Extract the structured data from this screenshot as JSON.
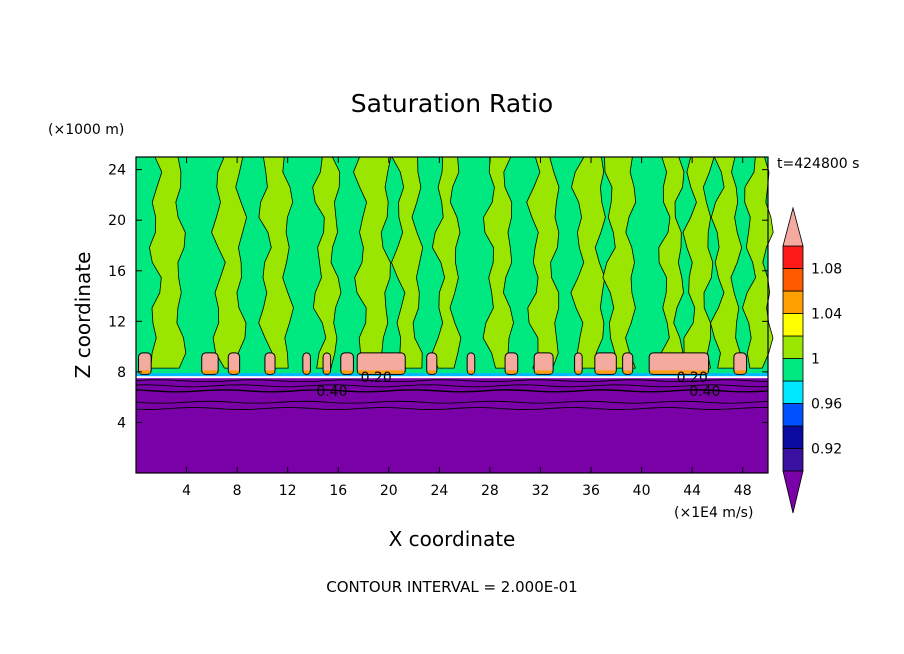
{
  "chart_data": {
    "type": "heatmap",
    "title": "Saturation Ratio",
    "xlabel": "X coordinate",
    "ylabel": "Z coordinate",
    "x_unit": "(×1E4 m/s)",
    "y_unit": "(×1000 m)",
    "time_label": "t=424800 s",
    "footer": "CONTOUR INTERVAL = 2.000E-01",
    "xlim": [
      0,
      50
    ],
    "ylim": [
      0,
      25
    ],
    "x_ticks": [
      "4",
      "8",
      "12",
      "16",
      "20",
      "24",
      "28",
      "32",
      "36",
      "40",
      "44",
      "48"
    ],
    "x_tick_values": [
      4,
      8,
      12,
      16,
      20,
      24,
      28,
      32,
      36,
      40,
      44,
      48
    ],
    "y_ticks": [
      "4",
      "8",
      "12",
      "16",
      "20",
      "24"
    ],
    "y_tick_values": [
      4,
      8,
      12,
      16,
      20,
      24
    ],
    "colorbar": {
      "labels": [
        "0.92",
        "0.96",
        "1",
        "1.04",
        "1.08"
      ],
      "label_values": [
        0.92,
        0.96,
        1.0,
        1.04,
        1.08
      ],
      "bins": [
        {
          "lo": 0.9,
          "hi": 0.92,
          "color": "#3a10a0"
        },
        {
          "lo": 0.92,
          "hi": 0.94,
          "color": "#0a0aa0"
        },
        {
          "lo": 0.94,
          "hi": 0.96,
          "color": "#0050ff"
        },
        {
          "lo": 0.96,
          "hi": 0.98,
          "color": "#00e8ff"
        },
        {
          "lo": 0.98,
          "hi": 1.0,
          "color": "#00e880"
        },
        {
          "lo": 1.0,
          "hi": 1.02,
          "color": "#9be600"
        },
        {
          "lo": 1.02,
          "hi": 1.04,
          "color": "#ffff00"
        },
        {
          "lo": 1.04,
          "hi": 1.06,
          "color": "#ffa000"
        },
        {
          "lo": 1.06,
          "hi": 1.08,
          "color": "#ff5a00"
        },
        {
          "lo": 1.08,
          "hi": 1.1,
          "color": "#ff1a1a"
        }
      ],
      "under_color": "#7a00a8",
      "over_color": "#f5aaa0"
    },
    "contour_labels": [
      {
        "text": "0.20",
        "x": 19,
        "z": 7.6
      },
      {
        "text": "0.40",
        "x": 15.5,
        "z": 6.5
      },
      {
        "text": "0.20",
        "x": 44,
        "z": 7.6
      },
      {
        "text": "0.40",
        "x": 45,
        "z": 6.5
      }
    ],
    "field": {
      "low_layer_top_z": 7.5,
      "low_layer_color": "#7a00a8",
      "cloud_layer_z": [
        7.8,
        9.5
      ],
      "cloud_color": "#f5aaa0",
      "upper_green_color": "#9be600",
      "upper_teal_color": "#00e880",
      "green_columns_x": [
        [
          1.5,
          3.5
        ],
        [
          6.5,
          8.3
        ],
        [
          10.2,
          12.0
        ],
        [
          14.5,
          15.8
        ],
        [
          17.8,
          19.8
        ],
        [
          20.8,
          22.3
        ],
        [
          24.0,
          25.3
        ],
        [
          28.0,
          29.5
        ],
        [
          31.5,
          33.2
        ],
        [
          35.0,
          36.8
        ],
        [
          37.5,
          39.2
        ],
        [
          41.8,
          43.0
        ],
        [
          43.8,
          45.3
        ],
        [
          46.0,
          47.5
        ],
        [
          48.5,
          50.0
        ]
      ],
      "cloud_caps_x": [
        [
          0.2,
          1.2
        ],
        [
          5.2,
          6.5
        ],
        [
          7.3,
          8.2
        ],
        [
          10.2,
          11.0
        ],
        [
          13.2,
          13.8
        ],
        [
          14.8,
          15.4
        ],
        [
          16.2,
          17.2
        ],
        [
          17.5,
          21.3
        ],
        [
          23.0,
          23.8
        ],
        [
          26.2,
          26.8
        ],
        [
          29.2,
          30.2
        ],
        [
          31.5,
          33.0
        ],
        [
          34.7,
          35.3
        ],
        [
          36.3,
          38.0
        ],
        [
          38.5,
          39.3
        ],
        [
          40.6,
          45.3
        ],
        [
          47.3,
          48.3
        ]
      ]
    }
  }
}
